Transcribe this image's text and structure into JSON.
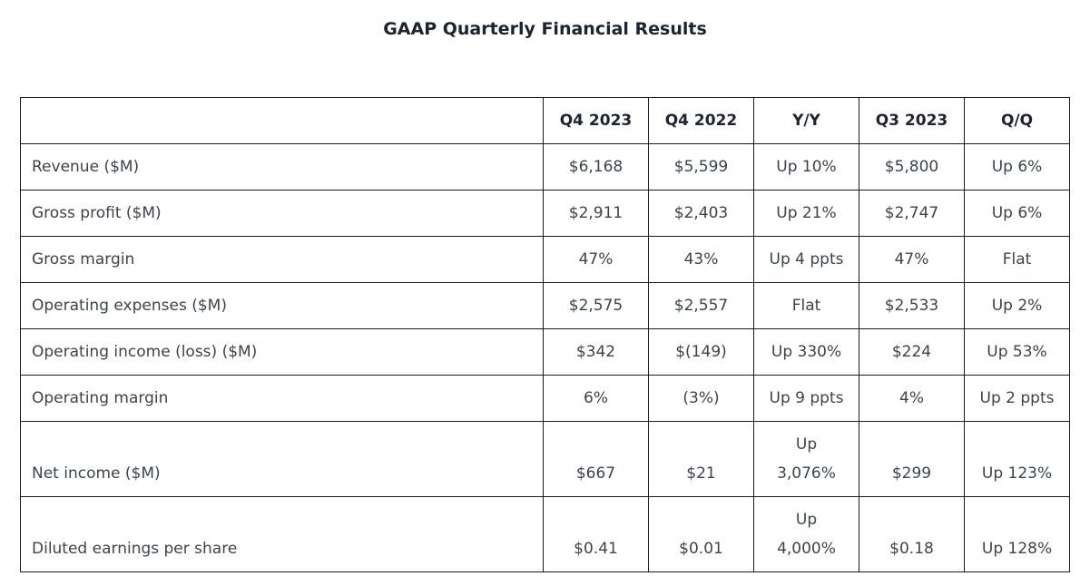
{
  "page": {
    "title": "GAAP Quarterly Financial Results"
  },
  "colors": {
    "background": "#ffffff",
    "title_text": "#1d2330",
    "header_text": "#1d2330",
    "body_text": "#3c434a",
    "table_border": "#1c1c1c"
  },
  "table": {
    "columns": [
      "",
      "Q4 2023",
      "Q4 2022",
      "Y/Y",
      "Q3 2023",
      "Q/Q"
    ],
    "rows": [
      {
        "label": "Revenue ($M)",
        "values": [
          "$6,168",
          "$5,599",
          "Up 10%",
          "$5,800",
          "Up 6%"
        ]
      },
      {
        "label": "Gross profit ($M)",
        "values": [
          "$2,911",
          "$2,403",
          "Up 21%",
          "$2,747",
          "Up 6%"
        ]
      },
      {
        "label": "Gross margin",
        "values": [
          "47%",
          "43%",
          "Up 4 ppts",
          "47%",
          "Flat"
        ]
      },
      {
        "label": "Operating expenses ($M)",
        "values": [
          "$2,575",
          "$2,557",
          "Flat",
          "$2,533",
          "Up 2%"
        ]
      },
      {
        "label": "Operating income (loss) ($M)",
        "values": [
          "$342",
          "$(149)",
          "Up 330%",
          "$224",
          "Up 53%"
        ]
      },
      {
        "label": "Operating margin",
        "values": [
          "6%",
          "(3%)",
          "Up 9 ppts",
          "4%",
          "Up 2 ppts"
        ]
      },
      {
        "label": "Net income ($M)",
        "values": [
          "$667",
          "$21",
          "Up\n3,076%",
          "$299",
          "Up 123%"
        ]
      },
      {
        "label": "Diluted earnings per share",
        "values": [
          "$0.41",
          "$0.01",
          "Up\n4,000%",
          "$0.18",
          "Up 128%"
        ]
      }
    ]
  }
}
